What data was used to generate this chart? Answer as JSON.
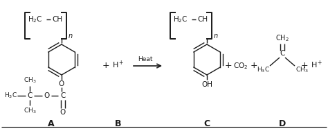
{
  "bg_color": "#ffffff",
  "line_color": "#1a1a1a",
  "fig_width": 4.74,
  "fig_height": 1.86,
  "dpi": 100,
  "label_A": "A",
  "label_B": "B",
  "label_C": "C",
  "label_D": "D",
  "hplus_B": "H$^+$",
  "heat_label": "Heat",
  "co2_label": "CO$_2$",
  "hplus_D": "H$^+$",
  "subscript_n": "n"
}
